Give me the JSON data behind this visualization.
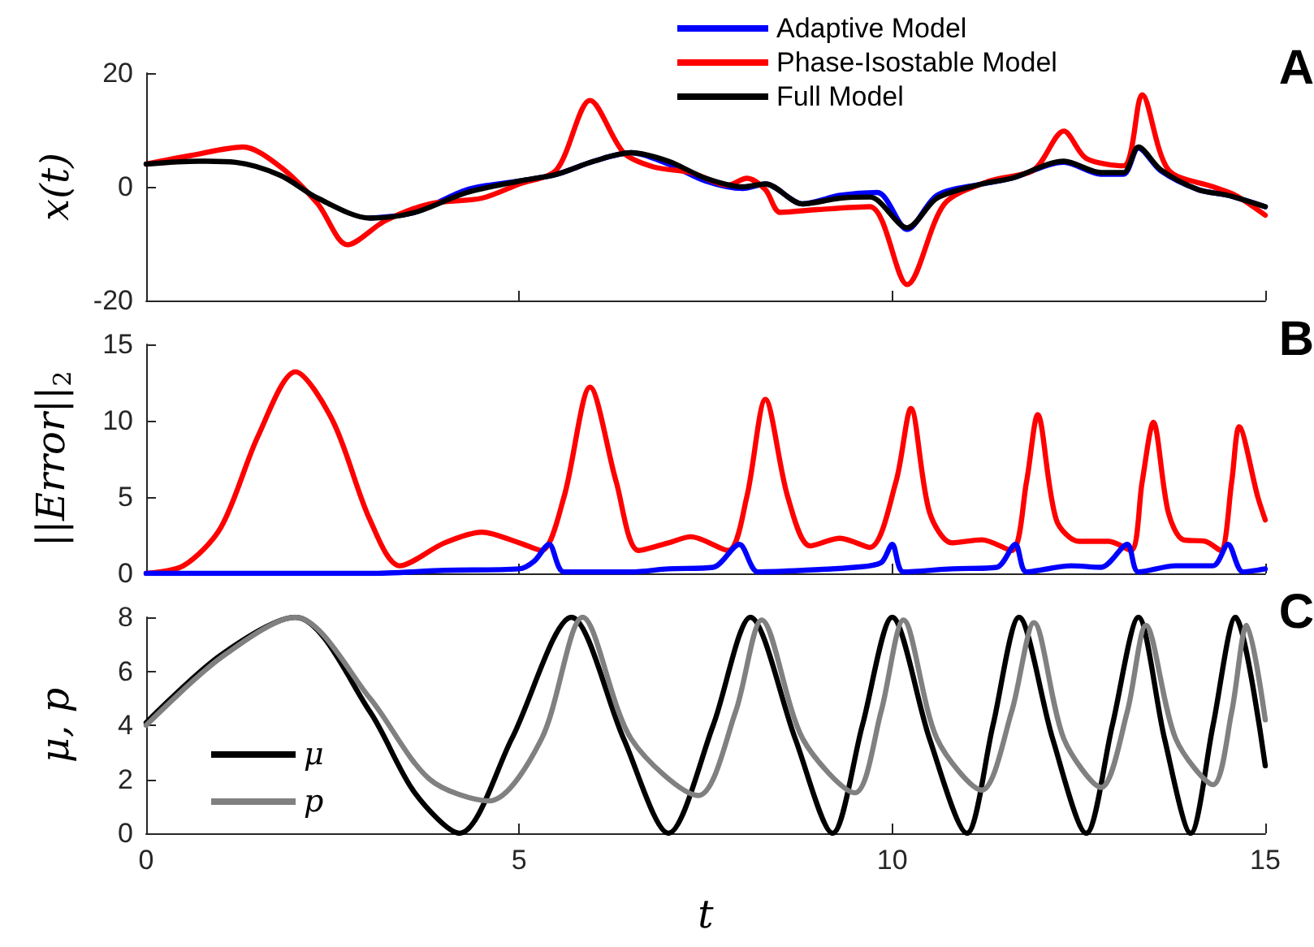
{
  "chart_data": [
    {
      "type": "line",
      "ylabel": "x(t)",
      "annotations": [
        "A"
      ],
      "xlim": [
        0,
        15
      ],
      "xticks": [
        0,
        5,
        10,
        15
      ],
      "ylim": [
        -20,
        20
      ],
      "yticks": [
        -20,
        0,
        20
      ],
      "tick_labels": "y",
      "grid": false,
      "legend": "top right",
      "marker": "none",
      "line_style": "solid",
      "series": [
        {
          "name": "Adaptive Model",
          "color": "#0000ff",
          "x": [
            3,
            3.6,
            4.3,
            5,
            5.5,
            6,
            6.5,
            7,
            7.5,
            8,
            8.3,
            8.8,
            9.3,
            9.8,
            10.2,
            10.6,
            11.2,
            11.6,
            12.3,
            12.8,
            13.1,
            13.3,
            13.6,
            14.1,
            14.5,
            15
          ],
          "values": [
            -5.5,
            -4.5,
            -0.5,
            1,
            2.2,
            4.5,
            6,
            4,
            1,
            -0.3,
            0.5,
            -3,
            -1.5,
            -1,
            -7.5,
            -1.5,
            0.5,
            1.5,
            4.3,
            2.2,
            2.2,
            6.8,
            2.8,
            -0.5,
            -1.5,
            -3.5
          ]
        },
        {
          "name": "Phase-Isostable Model",
          "color": "#ff0000",
          "x": [
            0,
            0.6,
            1.3,
            1.8,
            2.3,
            2.7,
            3.2,
            3.8,
            4.5,
            5,
            5.5,
            5.95,
            6.4,
            6.8,
            7.3,
            7.8,
            8.05,
            8.3,
            8.5,
            9,
            9.7,
            10.2,
            10.7,
            11.3,
            11.9,
            12.3,
            12.6,
            13.1,
            13.35,
            13.7,
            14.3,
            14.6,
            15
          ],
          "values": [
            4,
            5.5,
            7,
            3.5,
            -3,
            -10.2,
            -6,
            -3,
            -2,
            0.5,
            3,
            15.2,
            6,
            3.5,
            2.5,
            0.3,
            1.5,
            -0.5,
            -4.5,
            -4,
            -3.5,
            -17.2,
            -3,
            1,
            3,
            9.8,
            5,
            3.7,
            16.2,
            3,
            0,
            -1.5,
            -5
          ]
        },
        {
          "name": "Full Model",
          "color": "#000000",
          "x": [
            0,
            0.7,
            1.2,
            1.8,
            2.3,
            3,
            3.6,
            4.3,
            5,
            5.5,
            6,
            6.5,
            7,
            7.5,
            8,
            8.3,
            8.8,
            9.3,
            9.7,
            10.2,
            10.6,
            11.2,
            11.6,
            12.3,
            12.8,
            13.1,
            13.3,
            13.6,
            14.1,
            14.5,
            15
          ],
          "values": [
            4,
            4.5,
            4.3,
            2,
            -2,
            -5.5,
            -4.5,
            -1,
            1,
            2.2,
            4.5,
            6,
            4.5,
            1.5,
            0,
            0.5,
            -3,
            -2,
            -1.8,
            -7.2,
            -2,
            0.5,
            1.5,
            4.5,
            2.5,
            2.5,
            7,
            3,
            -0.5,
            -1.5,
            -3.5
          ]
        }
      ]
    },
    {
      "type": "line",
      "ylabel": "||Error||$_{2}$",
      "annotations": [
        "B"
      ],
      "xlim": [
        0,
        15
      ],
      "xticks": [
        0,
        5,
        10,
        15
      ],
      "ylim": [
        0,
        15
      ],
      "yticks": [
        0,
        5,
        10,
        15
      ],
      "tick_labels": "y",
      "grid": false,
      "legend": false,
      "marker": "none",
      "line_style": "solid",
      "series": [
        {
          "color": "#ff0000",
          "x": [
            0,
            0.5,
            1,
            1.5,
            2,
            2.5,
            3,
            3.4,
            4,
            4.5,
            5,
            5.3,
            5.6,
            5.95,
            6.3,
            6.6,
            7,
            7.3,
            7.8,
            8.05,
            8.3,
            8.6,
            8.9,
            9.3,
            9.7,
            10.05,
            10.25,
            10.5,
            10.8,
            11.2,
            11.6,
            11.8,
            11.95,
            12.2,
            12.5,
            12.9,
            13.2,
            13.35,
            13.5,
            13.7,
            13.9,
            14.2,
            14.4,
            14.55,
            14.65,
            14.9,
            15
          ],
          "values": [
            0,
            0.5,
            3,
            9,
            13.2,
            10,
            3.5,
            0.5,
            2,
            2.7,
            2,
            1.5,
            5,
            12.2,
            6,
            1.5,
            2,
            2.4,
            1.5,
            5,
            11.4,
            5,
            1.8,
            2.3,
            1.7,
            6,
            10.8,
            4,
            2,
            2.2,
            1.5,
            6,
            10.4,
            3.5,
            2.1,
            2.1,
            1.5,
            6,
            9.9,
            4,
            2.2,
            2.1,
            1.5,
            6,
            9.6,
            5,
            3.5
          ]
        },
        {
          "color": "#0000ff",
          "x": [
            0,
            3,
            4,
            5,
            5.2,
            5.4,
            5.6,
            6.5,
            7,
            7.6,
            7.95,
            8.2,
            8.8,
            9.5,
            9.85,
            10,
            10.15,
            10.8,
            11.4,
            11.65,
            11.8,
            12.4,
            12.8,
            13.15,
            13.3,
            13.8,
            14.3,
            14.5,
            14.7,
            15
          ],
          "values": [
            0,
            0,
            0.2,
            0.3,
            0.8,
            1.9,
            0.1,
            0.1,
            0.3,
            0.4,
            1.9,
            0.1,
            0.2,
            0.4,
            0.7,
            1.9,
            0.1,
            0.3,
            0.4,
            1.9,
            0.1,
            0.5,
            0.4,
            1.9,
            0.1,
            0.5,
            0.5,
            1.9,
            0.1,
            0.3
          ]
        }
      ]
    },
    {
      "type": "line",
      "xlabel": "t",
      "ylabel": "μ, p",
      "annotations": [
        "C"
      ],
      "xlim": [
        0,
        15
      ],
      "xticks": [
        0,
        5,
        10,
        15
      ],
      "ylim": [
        0,
        8
      ],
      "yticks": [
        0,
        2,
        4,
        6,
        8
      ],
      "grid": false,
      "legend": "left",
      "marker": "none",
      "line_style": "solid",
      "series": [
        {
          "name": "μ",
          "color": "#000000",
          "x": [
            0,
            1,
            2,
            3,
            3.6,
            4.2,
            4.9,
            5.7,
            6.4,
            7,
            7.6,
            8.1,
            8.7,
            9.2,
            9.6,
            10,
            10.5,
            11,
            11.35,
            11.7,
            12.15,
            12.6,
            12.95,
            13.3,
            13.65,
            14,
            14.3,
            14.6,
            15
          ],
          "values": [
            4.1,
            6.6,
            8,
            4.5,
            1.5,
            0,
            3.5,
            8,
            3.5,
            0,
            4,
            8,
            3.5,
            0,
            4,
            8,
            3.5,
            0,
            4,
            8,
            3.5,
            0,
            4,
            8,
            3.5,
            0,
            4,
            8,
            2.5
          ]
        },
        {
          "name": "p",
          "color": "#808080",
          "x": [
            0,
            1,
            2,
            3,
            3.8,
            4.6,
            5.3,
            5.85,
            6.5,
            7.4,
            7.9,
            8.25,
            8.8,
            9.5,
            9.85,
            10.15,
            10.6,
            11.2,
            11.6,
            11.9,
            12.3,
            12.8,
            13.15,
            13.4,
            13.8,
            14.3,
            14.55,
            14.75,
            15
          ],
          "values": [
            4,
            6.5,
            8,
            5,
            2,
            1.2,
            3.5,
            8,
            3.5,
            1.4,
            4.5,
            7.9,
            3.5,
            1.5,
            4.5,
            7.9,
            3.5,
            1.6,
            4.5,
            7.8,
            3.5,
            1.7,
            4.5,
            7.7,
            3.5,
            1.8,
            4.5,
            7.7,
            4.2
          ]
        }
      ]
    }
  ]
}
